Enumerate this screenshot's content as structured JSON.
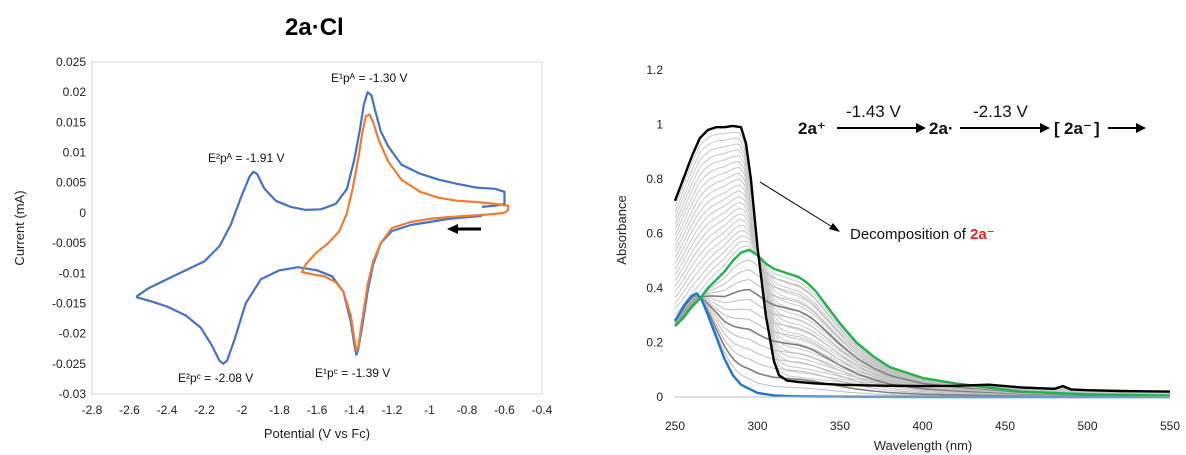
{
  "title": "2a·Cl",
  "chart_data": [
    {
      "type": "line",
      "xlabel": "Potential (V vs Fc)",
      "ylabel": "Current (mA)",
      "xlim": [
        -2.8,
        -0.4
      ],
      "ylim": [
        -0.03,
        0.025
      ],
      "xticks": [
        "-2.8",
        "-2.6",
        "-2.4",
        "-2.2",
        "-2",
        "-1.8",
        "-1.6",
        "-1.4",
        "-1.2",
        "-1",
        "-0.8",
        "-0.6",
        "-0.4"
      ],
      "yticks": [
        "0.025",
        "0.02",
        "0.015",
        "0.01",
        "0.005",
        "0",
        "-0.005",
        "-0.01",
        "-0.015",
        "-0.02",
        "-0.025",
        "-0.03"
      ],
      "grid": false,
      "legend": "none",
      "colors": {
        "blue": "#4472C4",
        "orange": "#ED7D31"
      },
      "series": [
        {
          "color": "#4472C4",
          "x": [
            -0.72,
            -0.8,
            -0.9,
            -1.0,
            -1.1,
            -1.2,
            -1.26,
            -1.3,
            -1.33,
            -1.36,
            -1.38,
            -1.39,
            -1.4,
            -1.42,
            -1.46,
            -1.52,
            -1.6,
            -1.7,
            -1.8,
            -1.9,
            -1.98,
            -2.04,
            -2.08,
            -2.1,
            -2.12,
            -2.16,
            -2.22,
            -2.3,
            -2.4,
            -2.5,
            -2.56,
            -2.56,
            -2.5,
            -2.4,
            -2.3,
            -2.2,
            -2.12,
            -2.06,
            -2.0,
            -1.96,
            -1.94,
            -1.92,
            -1.88,
            -1.82,
            -1.74,
            -1.66,
            -1.58,
            -1.5,
            -1.44,
            -1.4,
            -1.37,
            -1.35,
            -1.33,
            -1.31,
            -1.29,
            -1.26,
            -1.22,
            -1.15,
            -1.05,
            -0.95,
            -0.85,
            -0.75,
            -0.65,
            -0.6,
            -0.6,
            -0.65,
            -0.72
          ],
          "y": [
            -0.0005,
            -0.0007,
            -0.001,
            -0.0015,
            -0.002,
            -0.003,
            -0.005,
            -0.0085,
            -0.013,
            -0.019,
            -0.0225,
            -0.0235,
            -0.022,
            -0.018,
            -0.013,
            -0.0105,
            -0.0095,
            -0.009,
            -0.0095,
            -0.011,
            -0.015,
            -0.021,
            -0.0245,
            -0.025,
            -0.0245,
            -0.022,
            -0.019,
            -0.017,
            -0.0155,
            -0.0145,
            -0.014,
            -0.0138,
            -0.0125,
            -0.011,
            -0.0095,
            -0.008,
            -0.0055,
            -0.002,
            0.003,
            0.006,
            0.0068,
            0.0065,
            0.004,
            0.002,
            0.001,
            0.0005,
            0.0006,
            0.0015,
            0.004,
            0.009,
            0.014,
            0.018,
            0.02,
            0.0195,
            0.017,
            0.0135,
            0.011,
            0.008,
            0.0065,
            0.0055,
            0.0048,
            0.0042,
            0.004,
            0.0035,
            0.0015,
            0.0012,
            0.001
          ]
        },
        {
          "color": "#ED7D31",
          "x": [
            -0.6,
            -0.7,
            -0.8,
            -0.9,
            -1.0,
            -1.1,
            -1.2,
            -1.26,
            -1.3,
            -1.33,
            -1.36,
            -1.38,
            -1.39,
            -1.4,
            -1.42,
            -1.46,
            -1.5,
            -1.56,
            -1.62,
            -1.68,
            -1.66,
            -1.6,
            -1.54,
            -1.48,
            -1.44,
            -1.41,
            -1.38,
            -1.36,
            -1.34,
            -1.32,
            -1.3,
            -1.27,
            -1.22,
            -1.15,
            -1.05,
            -0.95,
            -0.85,
            -0.75,
            -0.65,
            -0.58,
            -0.58,
            -0.6
          ],
          "y": [
            0.0,
            -0.0003,
            -0.0005,
            -0.0007,
            -0.001,
            -0.0015,
            -0.0025,
            -0.005,
            -0.008,
            -0.012,
            -0.018,
            -0.0222,
            -0.0228,
            -0.021,
            -0.017,
            -0.013,
            -0.0115,
            -0.0105,
            -0.0102,
            -0.0098,
            -0.0085,
            -0.0065,
            -0.005,
            -0.003,
            0.0,
            0.004,
            0.009,
            0.013,
            0.016,
            0.0163,
            0.015,
            0.012,
            0.0085,
            0.0055,
            0.0035,
            0.0025,
            0.002,
            0.0018,
            0.0015,
            0.0012,
            0.0005,
            0.0
          ]
        }
      ],
      "annotations": [
        {
          "text": "E¹pᴬ = -1.30 V"
        },
        {
          "text": "E²pᴬ = -1.91 V"
        },
        {
          "text": "E²pᶜ = -2.08 V"
        },
        {
          "text": "E¹pᶜ = -1.39 V"
        }
      ]
    },
    {
      "type": "line",
      "xlabel": "Wavelength (nm)",
      "ylabel": "Absorbance",
      "xlim": [
        250,
        550
      ],
      "ylim": [
        0,
        1.2
      ],
      "xticks": [
        "250",
        "300",
        "350",
        "400",
        "450",
        "500",
        "550"
      ],
      "yticks": [
        "1.2",
        "1",
        "0.8",
        "0.6",
        "0.4",
        "0.2",
        "0"
      ],
      "grid": false,
      "legend": "none",
      "series": [
        {
          "color": "#000000",
          "x": [
            250,
            255,
            260,
            265,
            270,
            275,
            280,
            285,
            290,
            293,
            296,
            300,
            305,
            310,
            313,
            318,
            325,
            335,
            350,
            370,
            400,
            420,
            440,
            450,
            460,
            480,
            485,
            490,
            500,
            520,
            550
          ],
          "y": [
            0.72,
            0.8,
            0.88,
            0.95,
            0.98,
            0.99,
            0.99,
            0.995,
            0.99,
            0.93,
            0.8,
            0.55,
            0.3,
            0.13,
            0.08,
            0.06,
            0.055,
            0.05,
            0.045,
            0.042,
            0.04,
            0.041,
            0.045,
            0.04,
            0.035,
            0.03,
            0.04,
            0.028,
            0.025,
            0.022,
            0.02
          ]
        },
        {
          "color": "#22B24C",
          "x": [
            250,
            255,
            260,
            265,
            270,
            275,
            280,
            285,
            290,
            295,
            300,
            305,
            310,
            315,
            320,
            325,
            330,
            335,
            340,
            350,
            360,
            370,
            380,
            400,
            420,
            440,
            460,
            480,
            500,
            550
          ],
          "y": [
            0.26,
            0.29,
            0.33,
            0.36,
            0.4,
            0.43,
            0.46,
            0.5,
            0.53,
            0.54,
            0.52,
            0.49,
            0.47,
            0.46,
            0.45,
            0.44,
            0.42,
            0.39,
            0.35,
            0.27,
            0.2,
            0.15,
            0.11,
            0.07,
            0.05,
            0.035,
            0.02,
            0.015,
            0.01,
            0.005
          ]
        },
        {
          "color": "#1F77C8",
          "x": [
            250,
            253,
            256,
            260,
            263,
            266,
            270,
            275,
            280,
            285,
            290,
            300,
            310,
            320,
            330,
            350,
            400,
            450,
            550
          ],
          "y": [
            0.28,
            0.31,
            0.34,
            0.37,
            0.38,
            0.36,
            0.3,
            0.22,
            0.14,
            0.08,
            0.045,
            0.015,
            0.006,
            0.003,
            0.002,
            0.001,
            0.0,
            0.0,
            0.0
          ]
        }
      ],
      "annotations": [
        {
          "text": "Decomposition of "
        },
        {
          "text": "2a⁻"
        }
      ],
      "scheme": {
        "species1": "2a⁺",
        "step1": "-1.43 V",
        "species2": "2a·",
        "step2": "-2.13 V",
        "bracket_open": "[",
        "species3": "2a⁻",
        "bracket_close": "]",
        "colors": {
          "species1": "#1F77C8",
          "species2": "#22B24C",
          "species3": "#E8202A"
        }
      }
    }
  ]
}
